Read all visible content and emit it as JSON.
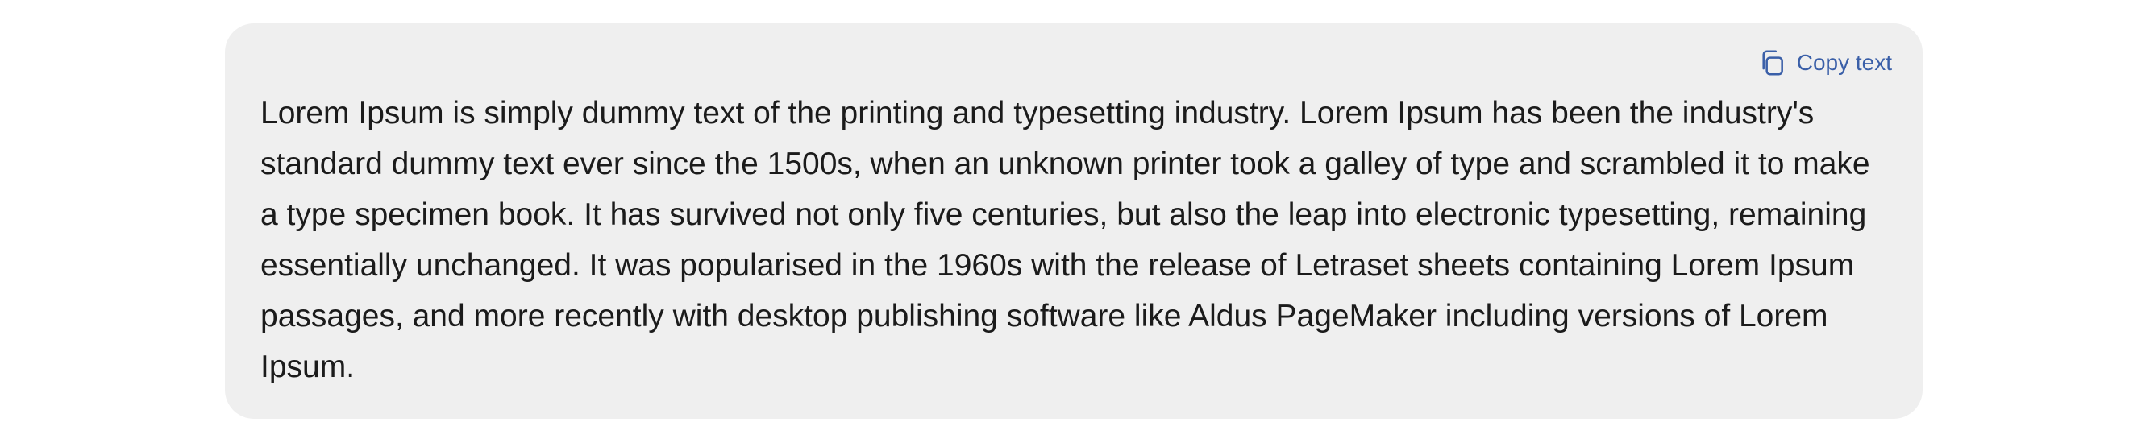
{
  "card": {
    "copy_label": "Copy text",
    "copy_icon": "copy-icon",
    "body_text": "Lorem Ipsum is simply dummy text of the printing and typesetting industry. Lorem Ipsum has been the industry's standard dummy text ever since the 1500s, when an unknown printer took a galley of type and scrambled it to make a type specimen book. It has survived not only five centuries, but also the leap into electronic typesetting, remaining essentially unchanged. It was popularised in the 1960s with the release of Letraset sheets containing Lorem Ipsum passages, and more recently with desktop publishing software like Aldus PageMaker including versions of Lorem Ipsum."
  },
  "colors": {
    "card_background": "#efefef",
    "accent": "#3a5fa8",
    "text": "#1b1b1b"
  }
}
